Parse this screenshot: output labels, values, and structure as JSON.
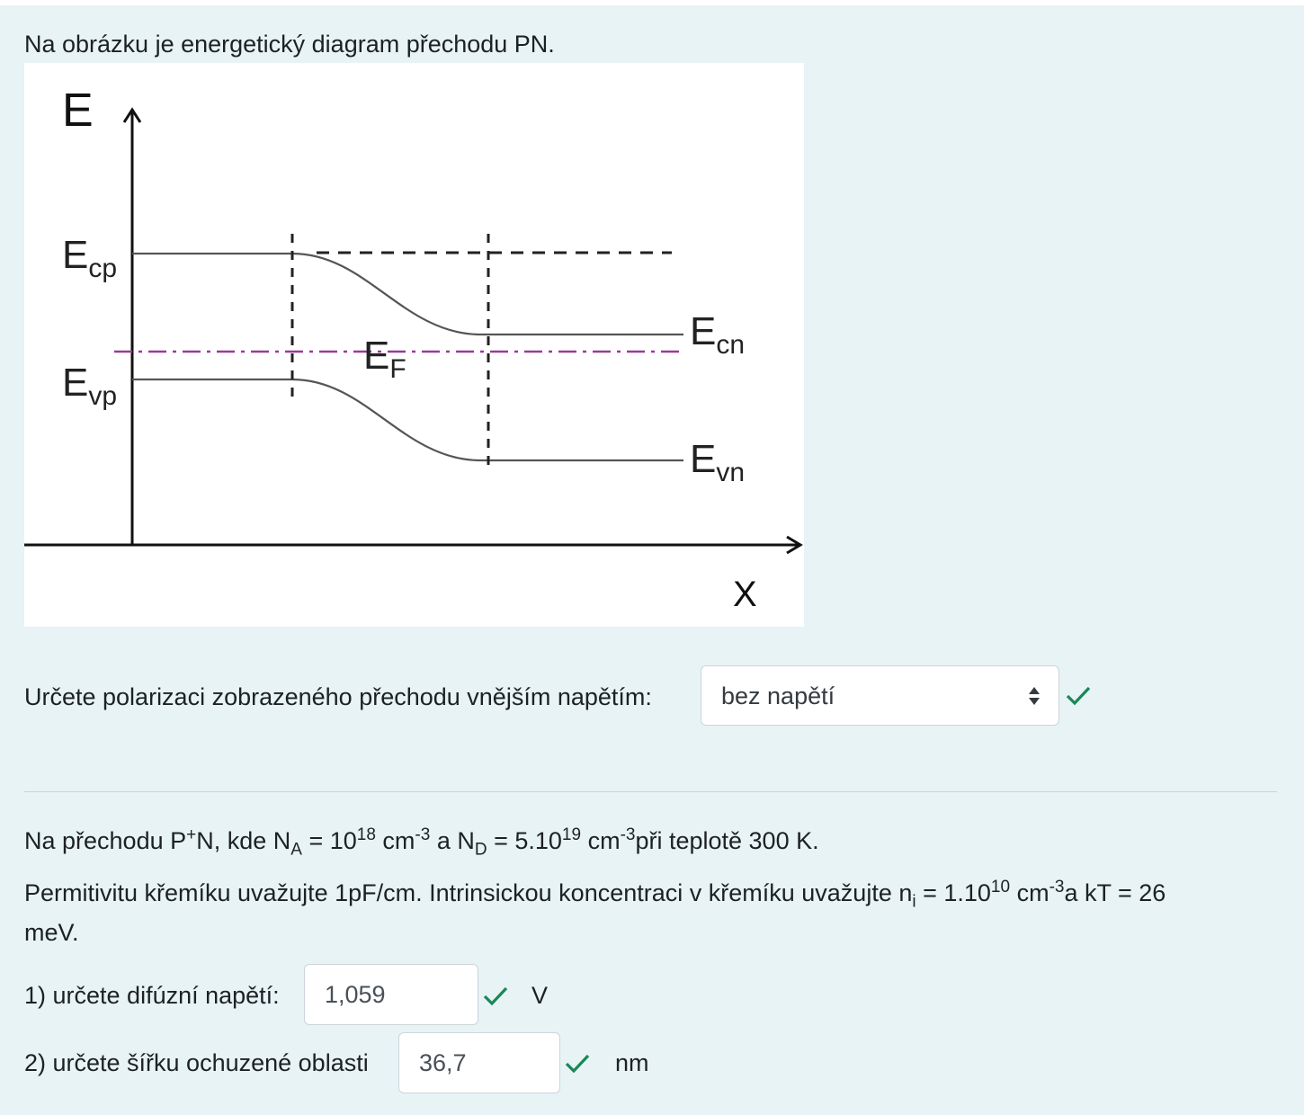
{
  "intro": "Na obrázku je energetický diagram přechodu PN.",
  "diagram": {
    "axis_y": "E",
    "axis_x": "X",
    "ecp": {
      "main": "E",
      "sub": "cp"
    },
    "evp": {
      "main": "E",
      "sub": "vp"
    },
    "ecn": {
      "main": "E",
      "sub": "cn"
    },
    "evn": {
      "main": "E",
      "sub": "vn"
    },
    "ef": {
      "main": "E",
      "sub": "F"
    }
  },
  "question1": {
    "label": "Určete polarizaci zobrazeného přechodu vnějším napětím:",
    "selected": "bez napětí",
    "status": "check-icon"
  },
  "problem": {
    "line1": {
      "t1": "Na přechodu P",
      "sup1": "+",
      "t2": "N, kde N",
      "sub1": "A",
      "t3": " = 10",
      "sup2": "18",
      "t4": " cm",
      "sup3": "-3",
      "t5": " a N",
      "sub2": "D",
      "t6": " = 5.10",
      "sup4": "19",
      "t7": " cm",
      "sup5": "-3",
      "t8": "při teplotě 300 K."
    },
    "line2": {
      "t1": "Permitivitu křemíku uvažujte 1pF/cm. Intrinsickou koncentraci v křemíku uvažujte n",
      "sub1": "i",
      "t2": " = 1.10",
      "sup1": "10",
      "t3": " cm",
      "sup2": "-3",
      "t4": "a kT = 26",
      "t5": "meV."
    }
  },
  "part1": {
    "label": "1) určete difúzní napětí:",
    "value": "1,059",
    "unit": "V"
  },
  "part2": {
    "label": "2) určete šířku ochuzené oblasti",
    "value": "36,7",
    "unit": "nm"
  },
  "colors": {
    "accent_check": "#1a8754",
    "fermi_line": "#9b3a97",
    "panel_bg": "#e7f3f5"
  }
}
